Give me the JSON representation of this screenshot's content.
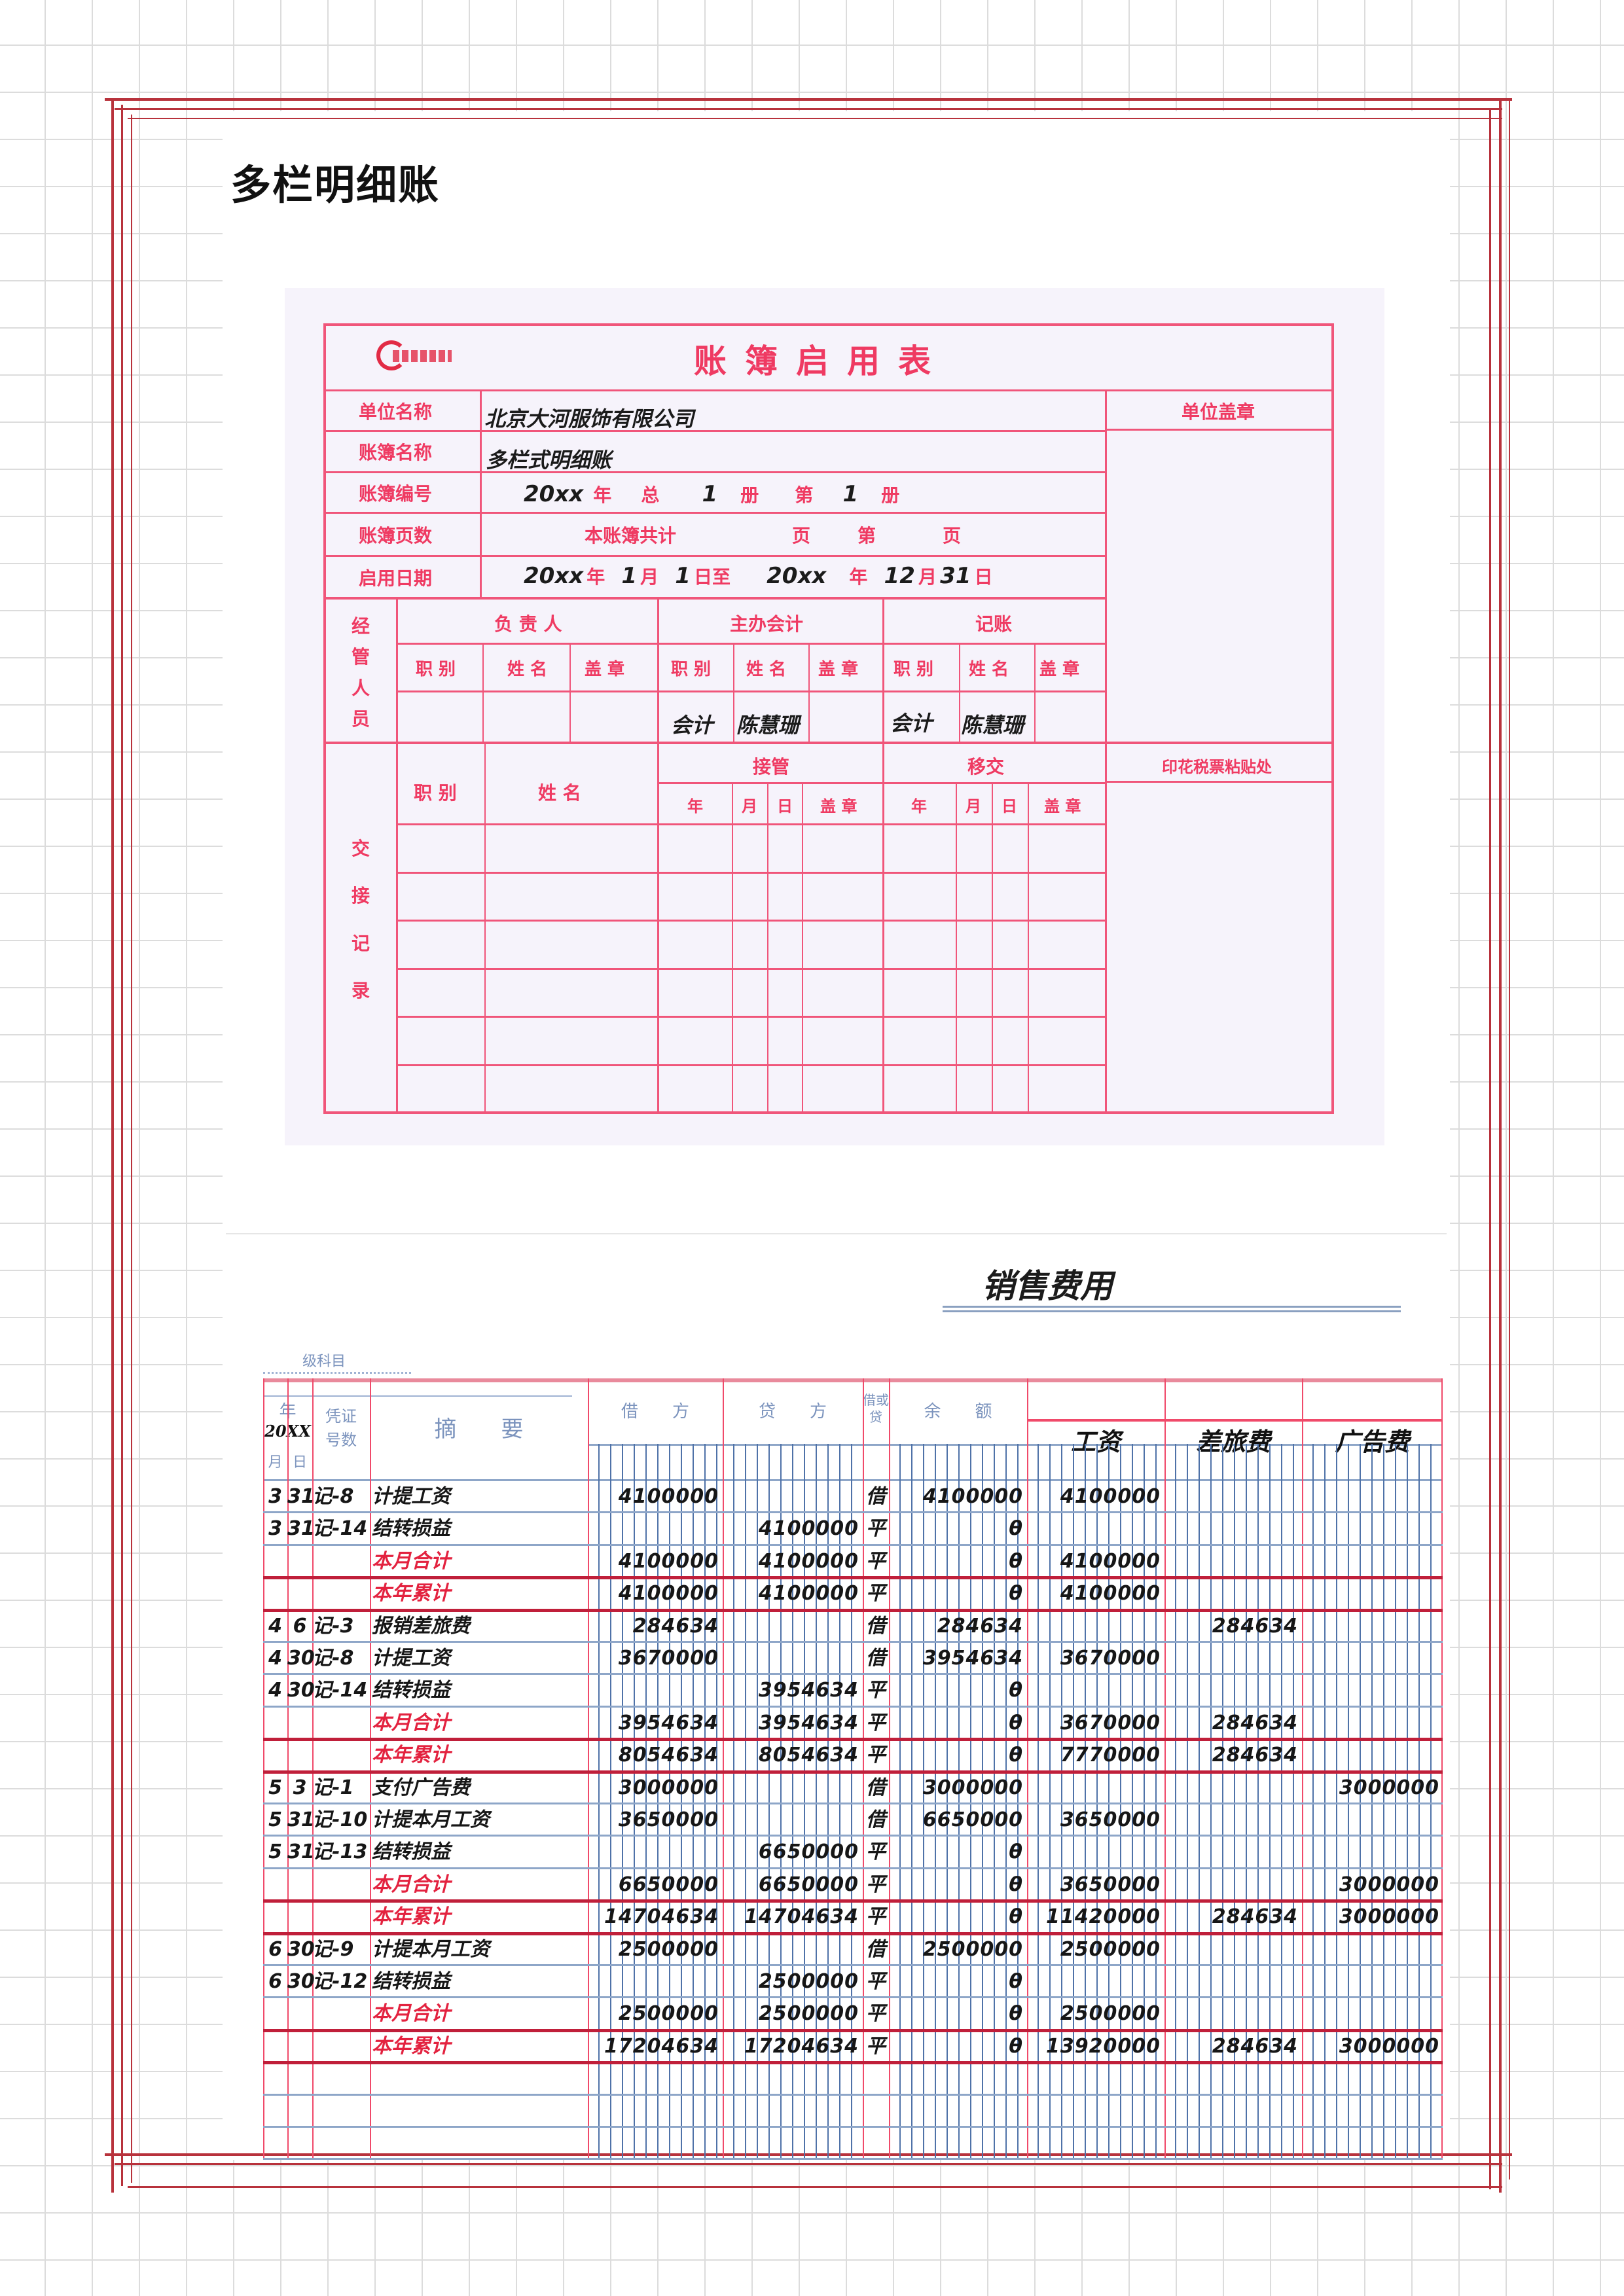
{
  "page_title": "多栏明细账",
  "startup_form": {
    "title": "账簿启用表",
    "labels": {
      "unit_name": "单位名称",
      "book_name": "账簿名称",
      "book_number": "账簿编号",
      "book_pages": "账簿页数",
      "start_date": "启用日期",
      "unit_seal": "单位盖章"
    },
    "unit_name": "北京大河服饰有限公司",
    "book_name": "多栏式明细账",
    "book_number": {
      "year": "20xx",
      "year_label": "年",
      "total_label": "总",
      "total": "1",
      "volume_label": "册",
      "no_label": "第",
      "no": "1",
      "volume_label2": "册"
    },
    "book_pages": {
      "prefix": "本账簿共计",
      "page_label": "页",
      "no_label": "第",
      "page_label2": "页"
    },
    "start_date": {
      "from_year": "20xx",
      "y": "年",
      "from_month": "1",
      "m": "月",
      "from_day": "1",
      "d_to": "日至",
      "to_year": "20xx",
      "y2": "年",
      "to_month": "12",
      "m2": "月",
      "to_day": "31",
      "d2": "日"
    },
    "managers": {
      "section_label": [
        "经",
        "管",
        "人",
        "员"
      ],
      "groups": [
        "负 责 人",
        "主办会计",
        "记账"
      ],
      "sub_headers": [
        "职 别",
        "姓 名",
        "盖 章"
      ],
      "chief_accountant": {
        "title": "会计",
        "name": "陈慧珊"
      },
      "bookkeeper": {
        "title": "会计",
        "name": "陈慧珊"
      }
    },
    "handover": {
      "section_label": [
        "交",
        "接",
        "记",
        "录"
      ],
      "title_label": "职 别",
      "name_label": "姓 名",
      "take_over": "接管",
      "hand_over": "移交",
      "date_headers": [
        "年",
        "月",
        "日",
        "盖 章"
      ],
      "stamp_area": "印花税票粘贴处"
    }
  },
  "ledger": {
    "title": "销售费用",
    "account_caption": "级科目",
    "headers": {
      "year": "年",
      "year_value": "20XX",
      "month": "月",
      "day": "日",
      "voucher": "凭证\n号数",
      "summary": "摘　　要",
      "debit": "借　　方",
      "credit": "贷　　方",
      "dc": "借或贷",
      "balance": "余　　额",
      "columns": [
        "工资",
        "差旅费",
        "广告费"
      ]
    },
    "rows": [
      {
        "m": "3",
        "d": "31",
        "v": "记-8",
        "s": "计提工资",
        "debit": "4100000",
        "credit": "",
        "dc": "借",
        "bal": "4100000",
        "c1": "4100000",
        "c2": "",
        "c3": "",
        "total": false
      },
      {
        "m": "3",
        "d": "31",
        "v": "记-14",
        "s": "结转损益",
        "debit": "",
        "credit": "4100000",
        "dc": "平",
        "bal": "θ",
        "c1": "",
        "c2": "",
        "c3": "",
        "total": false
      },
      {
        "m": "",
        "d": "",
        "v": "",
        "s": "本月合计",
        "debit": "4100000",
        "credit": "4100000",
        "dc": "平",
        "bal": "θ",
        "c1": "4100000",
        "c2": "",
        "c3": "",
        "total": true
      },
      {
        "m": "",
        "d": "",
        "v": "",
        "s": "本年累计",
        "debit": "4100000",
        "credit": "4100000",
        "dc": "平",
        "bal": "θ",
        "c1": "4100000",
        "c2": "",
        "c3": "",
        "total": true
      },
      {
        "m": "4",
        "d": "6",
        "v": "记-3",
        "s": "报销差旅费",
        "debit": "284634",
        "credit": "",
        "dc": "借",
        "bal": "284634",
        "c1": "",
        "c2": "284634",
        "c3": "",
        "total": false
      },
      {
        "m": "4",
        "d": "30",
        "v": "记-8",
        "s": "计提工资",
        "debit": "3670000",
        "credit": "",
        "dc": "借",
        "bal": "3954634",
        "c1": "3670000",
        "c2": "",
        "c3": "",
        "total": false
      },
      {
        "m": "4",
        "d": "30",
        "v": "记-14",
        "s": "结转损益",
        "debit": "",
        "credit": "3954634",
        "dc": "平",
        "bal": "θ",
        "c1": "",
        "c2": "",
        "c3": "",
        "total": false
      },
      {
        "m": "",
        "d": "",
        "v": "",
        "s": "本月合计",
        "debit": "3954634",
        "credit": "3954634",
        "dc": "平",
        "bal": "θ",
        "c1": "3670000",
        "c2": "284634",
        "c3": "",
        "total": true
      },
      {
        "m": "",
        "d": "",
        "v": "",
        "s": "本年累计",
        "debit": "8054634",
        "credit": "8054634",
        "dc": "平",
        "bal": "θ",
        "c1": "7770000",
        "c2": "284634",
        "c3": "",
        "total": true
      },
      {
        "m": "5",
        "d": "3",
        "v": "记-1",
        "s": "支付广告费",
        "debit": "3000000",
        "credit": "",
        "dc": "借",
        "bal": "3000000",
        "c1": "",
        "c2": "",
        "c3": "3000000",
        "total": false
      },
      {
        "m": "5",
        "d": "31",
        "v": "记-10",
        "s": "计提本月工资",
        "debit": "3650000",
        "credit": "",
        "dc": "借",
        "bal": "6650000",
        "c1": "3650000",
        "c2": "",
        "c3": "",
        "total": false
      },
      {
        "m": "5",
        "d": "31",
        "v": "记-13",
        "s": "结转损益",
        "debit": "",
        "credit": "6650000",
        "dc": "平",
        "bal": "θ",
        "c1": "",
        "c2": "",
        "c3": "",
        "total": false
      },
      {
        "m": "",
        "d": "",
        "v": "",
        "s": "本月合计",
        "debit": "6650000",
        "credit": "6650000",
        "dc": "平",
        "bal": "θ",
        "c1": "3650000",
        "c2": "",
        "c3": "3000000",
        "total": true
      },
      {
        "m": "",
        "d": "",
        "v": "",
        "s": "本年累计",
        "debit": "14704634",
        "credit": "14704634",
        "dc": "平",
        "bal": "θ",
        "c1": "11420000",
        "c2": "284634",
        "c3": "3000000",
        "total": true
      },
      {
        "m": "6",
        "d": "30",
        "v": "记-9",
        "s": "计提本月工资",
        "debit": "2500000",
        "credit": "",
        "dc": "借",
        "bal": "2500000",
        "c1": "2500000",
        "c2": "",
        "c3": "",
        "total": false
      },
      {
        "m": "6",
        "d": "30",
        "v": "记-12",
        "s": "结转损益",
        "debit": "",
        "credit": "2500000",
        "dc": "平",
        "bal": "θ",
        "c1": "",
        "c2": "",
        "c3": "",
        "total": false
      },
      {
        "m": "",
        "d": "",
        "v": "",
        "s": "本月合计",
        "debit": "2500000",
        "credit": "2500000",
        "dc": "平",
        "bal": "θ",
        "c1": "2500000",
        "c2": "",
        "c3": "",
        "total": true
      },
      {
        "m": "",
        "d": "",
        "v": "",
        "s": "本年累计",
        "debit": "17204634",
        "credit": "17204634",
        "dc": "平",
        "bal": "θ",
        "c1": "13920000",
        "c2": "284634",
        "c3": "3000000",
        "total": true
      }
    ]
  },
  "colors": {
    "frame": "#b8323c",
    "form_red": "#ef3a62",
    "ledger_red": "#e3223f",
    "ledger_blue": "#4f72a8"
  }
}
